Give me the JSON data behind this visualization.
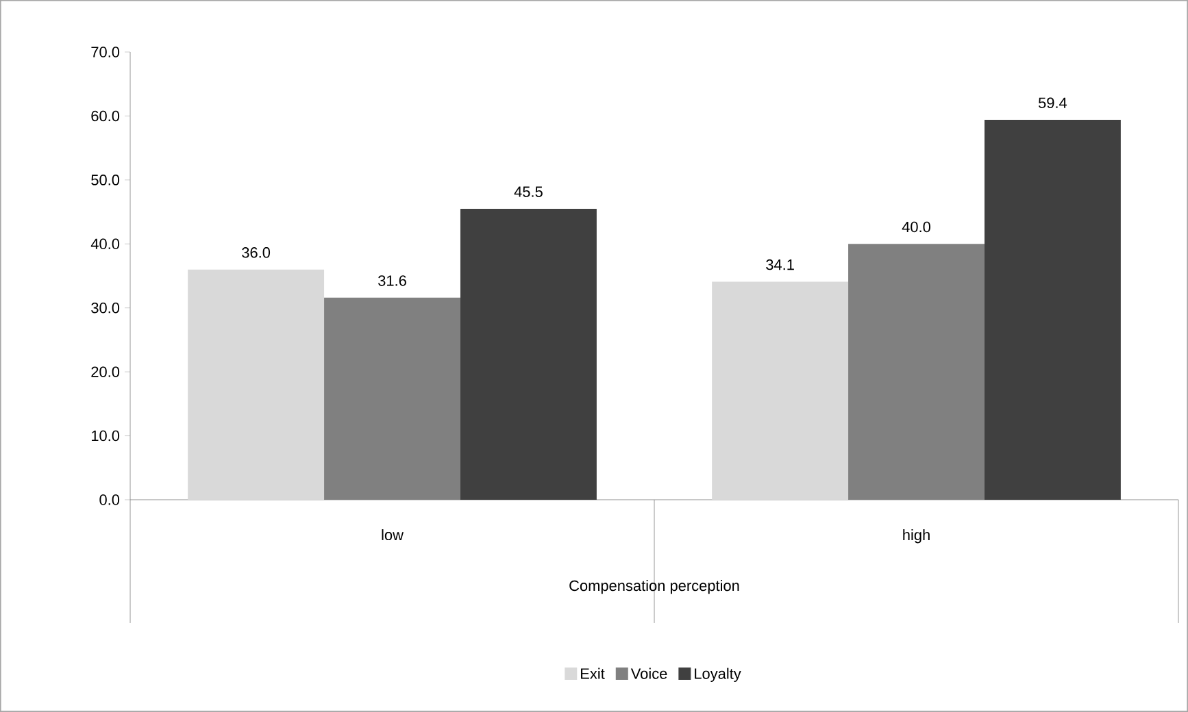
{
  "chart_data": {
    "type": "bar",
    "xlabel": "Compensation perception",
    "categories": [
      "low",
      "high"
    ],
    "series": [
      {
        "name": "Exit",
        "color": "#d9d9d9",
        "values": [
          36.0,
          34.1
        ],
        "value_labels": [
          "36.0",
          "34.1"
        ]
      },
      {
        "name": "Voice",
        "color": "#808080",
        "values": [
          31.6,
          40.0
        ],
        "value_labels": [
          "31.6",
          "40.0"
        ]
      },
      {
        "name": "Loyalty",
        "color": "#404040",
        "values": [
          45.5,
          59.4
        ],
        "value_labels": [
          "45.5",
          "59.4"
        ]
      }
    ],
    "ylim": [
      0,
      70
    ],
    "yticks": [
      {
        "value": 0,
        "label": "0.0"
      },
      {
        "value": 10,
        "label": "10.0"
      },
      {
        "value": 20,
        "label": "20.0"
      },
      {
        "value": 30,
        "label": "30.0"
      },
      {
        "value": 40,
        "label": "40.0"
      },
      {
        "value": 50,
        "label": "50.0"
      },
      {
        "value": 60,
        "label": "60.0"
      },
      {
        "value": 70,
        "label": "70.0"
      }
    ],
    "grid": false,
    "legend": "bottom"
  }
}
